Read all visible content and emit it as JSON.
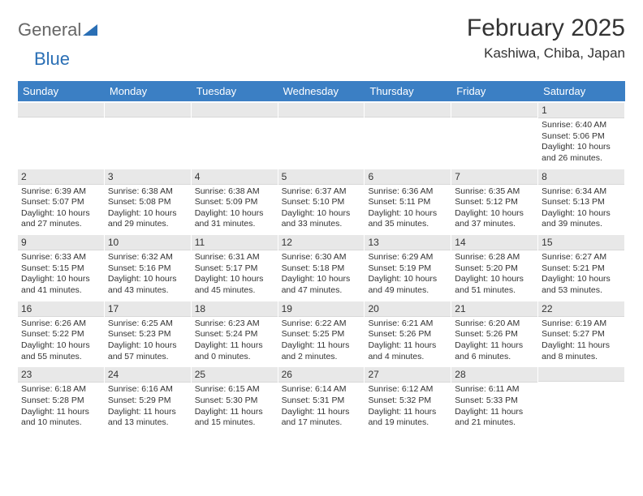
{
  "logo": {
    "text1": "General",
    "text2": "Blue"
  },
  "title": "February 2025",
  "location": "Kashiwa, Chiba, Japan",
  "colors": {
    "header_bg": "#3b7fc4",
    "header_text": "#ffffff",
    "daybar_bg": "#e8e8e8",
    "text": "#333333",
    "logo_blue": "#2a6fb5"
  },
  "day_labels": [
    "Sunday",
    "Monday",
    "Tuesday",
    "Wednesday",
    "Thursday",
    "Friday",
    "Saturday"
  ],
  "weeks": [
    [
      {
        "n": "",
        "sr": "",
        "ss": "",
        "dl": ""
      },
      {
        "n": "",
        "sr": "",
        "ss": "",
        "dl": ""
      },
      {
        "n": "",
        "sr": "",
        "ss": "",
        "dl": ""
      },
      {
        "n": "",
        "sr": "",
        "ss": "",
        "dl": ""
      },
      {
        "n": "",
        "sr": "",
        "ss": "",
        "dl": ""
      },
      {
        "n": "",
        "sr": "",
        "ss": "",
        "dl": ""
      },
      {
        "n": "1",
        "sr": "Sunrise: 6:40 AM",
        "ss": "Sunset: 5:06 PM",
        "dl": "Daylight: 10 hours and 26 minutes."
      }
    ],
    [
      {
        "n": "2",
        "sr": "Sunrise: 6:39 AM",
        "ss": "Sunset: 5:07 PM",
        "dl": "Daylight: 10 hours and 27 minutes."
      },
      {
        "n": "3",
        "sr": "Sunrise: 6:38 AM",
        "ss": "Sunset: 5:08 PM",
        "dl": "Daylight: 10 hours and 29 minutes."
      },
      {
        "n": "4",
        "sr": "Sunrise: 6:38 AM",
        "ss": "Sunset: 5:09 PM",
        "dl": "Daylight: 10 hours and 31 minutes."
      },
      {
        "n": "5",
        "sr": "Sunrise: 6:37 AM",
        "ss": "Sunset: 5:10 PM",
        "dl": "Daylight: 10 hours and 33 minutes."
      },
      {
        "n": "6",
        "sr": "Sunrise: 6:36 AM",
        "ss": "Sunset: 5:11 PM",
        "dl": "Daylight: 10 hours and 35 minutes."
      },
      {
        "n": "7",
        "sr": "Sunrise: 6:35 AM",
        "ss": "Sunset: 5:12 PM",
        "dl": "Daylight: 10 hours and 37 minutes."
      },
      {
        "n": "8",
        "sr": "Sunrise: 6:34 AM",
        "ss": "Sunset: 5:13 PM",
        "dl": "Daylight: 10 hours and 39 minutes."
      }
    ],
    [
      {
        "n": "9",
        "sr": "Sunrise: 6:33 AM",
        "ss": "Sunset: 5:15 PM",
        "dl": "Daylight: 10 hours and 41 minutes."
      },
      {
        "n": "10",
        "sr": "Sunrise: 6:32 AM",
        "ss": "Sunset: 5:16 PM",
        "dl": "Daylight: 10 hours and 43 minutes."
      },
      {
        "n": "11",
        "sr": "Sunrise: 6:31 AM",
        "ss": "Sunset: 5:17 PM",
        "dl": "Daylight: 10 hours and 45 minutes."
      },
      {
        "n": "12",
        "sr": "Sunrise: 6:30 AM",
        "ss": "Sunset: 5:18 PM",
        "dl": "Daylight: 10 hours and 47 minutes."
      },
      {
        "n": "13",
        "sr": "Sunrise: 6:29 AM",
        "ss": "Sunset: 5:19 PM",
        "dl": "Daylight: 10 hours and 49 minutes."
      },
      {
        "n": "14",
        "sr": "Sunrise: 6:28 AM",
        "ss": "Sunset: 5:20 PM",
        "dl": "Daylight: 10 hours and 51 minutes."
      },
      {
        "n": "15",
        "sr": "Sunrise: 6:27 AM",
        "ss": "Sunset: 5:21 PM",
        "dl": "Daylight: 10 hours and 53 minutes."
      }
    ],
    [
      {
        "n": "16",
        "sr": "Sunrise: 6:26 AM",
        "ss": "Sunset: 5:22 PM",
        "dl": "Daylight: 10 hours and 55 minutes."
      },
      {
        "n": "17",
        "sr": "Sunrise: 6:25 AM",
        "ss": "Sunset: 5:23 PM",
        "dl": "Daylight: 10 hours and 57 minutes."
      },
      {
        "n": "18",
        "sr": "Sunrise: 6:23 AM",
        "ss": "Sunset: 5:24 PM",
        "dl": "Daylight: 11 hours and 0 minutes."
      },
      {
        "n": "19",
        "sr": "Sunrise: 6:22 AM",
        "ss": "Sunset: 5:25 PM",
        "dl": "Daylight: 11 hours and 2 minutes."
      },
      {
        "n": "20",
        "sr": "Sunrise: 6:21 AM",
        "ss": "Sunset: 5:26 PM",
        "dl": "Daylight: 11 hours and 4 minutes."
      },
      {
        "n": "21",
        "sr": "Sunrise: 6:20 AM",
        "ss": "Sunset: 5:26 PM",
        "dl": "Daylight: 11 hours and 6 minutes."
      },
      {
        "n": "22",
        "sr": "Sunrise: 6:19 AM",
        "ss": "Sunset: 5:27 PM",
        "dl": "Daylight: 11 hours and 8 minutes."
      }
    ],
    [
      {
        "n": "23",
        "sr": "Sunrise: 6:18 AM",
        "ss": "Sunset: 5:28 PM",
        "dl": "Daylight: 11 hours and 10 minutes."
      },
      {
        "n": "24",
        "sr": "Sunrise: 6:16 AM",
        "ss": "Sunset: 5:29 PM",
        "dl": "Daylight: 11 hours and 13 minutes."
      },
      {
        "n": "25",
        "sr": "Sunrise: 6:15 AM",
        "ss": "Sunset: 5:30 PM",
        "dl": "Daylight: 11 hours and 15 minutes."
      },
      {
        "n": "26",
        "sr": "Sunrise: 6:14 AM",
        "ss": "Sunset: 5:31 PM",
        "dl": "Daylight: 11 hours and 17 minutes."
      },
      {
        "n": "27",
        "sr": "Sunrise: 6:12 AM",
        "ss": "Sunset: 5:32 PM",
        "dl": "Daylight: 11 hours and 19 minutes."
      },
      {
        "n": "28",
        "sr": "Sunrise: 6:11 AM",
        "ss": "Sunset: 5:33 PM",
        "dl": "Daylight: 11 hours and 21 minutes."
      },
      {
        "n": "",
        "sr": "",
        "ss": "",
        "dl": ""
      }
    ]
  ]
}
